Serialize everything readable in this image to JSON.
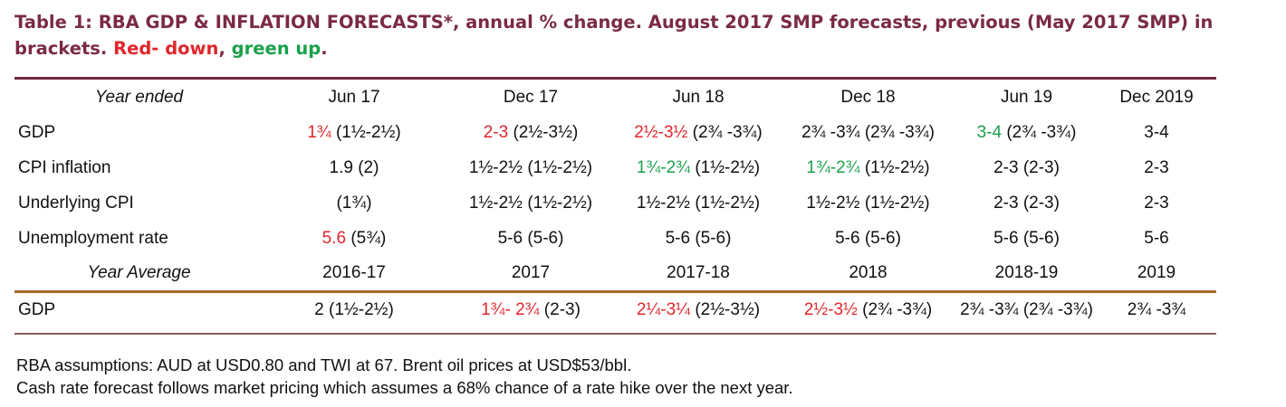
{
  "title": {
    "main": "Table 1: RBA GDP & INFLATION FORECASTS*, annual % change. August 2017 SMP forecasts, previous (May 2017 SMP) in brackets.",
    "red_label": "Red- down",
    "separator": ",",
    "green_label": "green up",
    "end": "."
  },
  "colors": {
    "title": "#7a2a45",
    "down": "#e0262b",
    "up": "#1aa04b",
    "top_rule": "#6e2a3d",
    "mid_rule": "#a86a2b"
  },
  "table": {
    "header": {
      "label": "Year ended",
      "columns": [
        "Jun 17",
        "Dec 17",
        "Jun 18",
        "Dec 18",
        "Jun 19",
        "Dec 2019"
      ]
    },
    "rows": [
      {
        "label": "GDP",
        "cells": [
          {
            "value": "1¾",
            "prev": "(1½-2½)",
            "dir": "down"
          },
          {
            "value": "2-3",
            "prev": "(2½-3½)",
            "dir": "down"
          },
          {
            "value": "2½-3½",
            "prev": "(2¾ -3¾)",
            "dir": "down"
          },
          {
            "value": "2¾ -3¾",
            "prev": "(2¾ -3¾)",
            "dir": "none"
          },
          {
            "value": "3-4",
            "prev": "(2¾ -3¾)",
            "dir": "up"
          },
          {
            "value": "3-4",
            "prev": "",
            "dir": "none"
          }
        ]
      },
      {
        "label": "CPI inflation",
        "cells": [
          {
            "value": "1.9",
            "prev": "(2)",
            "dir": "none"
          },
          {
            "value": "1½-2½",
            "prev": "(1½-2½)",
            "dir": "none"
          },
          {
            "value": "1¾-2¾",
            "prev": "(1½-2½)",
            "dir": "up"
          },
          {
            "value": "1¾-2¾",
            "prev": "(1½-2½)",
            "dir": "up"
          },
          {
            "value": "2-3",
            "prev": "(2-3)",
            "dir": "none"
          },
          {
            "value": "2-3",
            "prev": "",
            "dir": "none"
          }
        ]
      },
      {
        "label": "Underlying CPI",
        "cells": [
          {
            "value": "",
            "prev": "(1¾)",
            "dir": "none"
          },
          {
            "value": "1½-2½",
            "prev": "(1½-2½)",
            "dir": "none"
          },
          {
            "value": "1½-2½",
            "prev": " (1½-2½)",
            "dir": "none"
          },
          {
            "value": "1½-2½",
            "prev": "(1½-2½)",
            "dir": "none"
          },
          {
            "value": "2-3",
            "prev": "(2-3)",
            "dir": "none"
          },
          {
            "value": "2-3",
            "prev": "",
            "dir": "none"
          }
        ]
      },
      {
        "label": "Unemployment rate",
        "cells": [
          {
            "value": "5.6",
            "prev": "(5¾)",
            "dir": "down"
          },
          {
            "value": "5-6",
            "prev": "(5-6)",
            "dir": "none"
          },
          {
            "value": "5-6",
            "prev": "(5-6)",
            "dir": "none"
          },
          {
            "value": "5-6",
            "prev": "(5-6)",
            "dir": "none"
          },
          {
            "value": "5-6",
            "prev": "(5-6)",
            "dir": "none"
          },
          {
            "value": "5-6",
            "prev": "",
            "dir": "none"
          }
        ]
      }
    ],
    "avg_header": {
      "label": "Year Average",
      "columns": [
        "2016-17",
        "2017",
        "2017-18",
        "2018",
        "2018-19",
        "2019"
      ]
    },
    "avg_rows": [
      {
        "label": "GDP",
        "cells": [
          {
            "value": "2",
            "prev": "(1½-2½)",
            "dir": "none"
          },
          {
            "value": "1¾- 2¾",
            "prev": "(2-3)",
            "dir": "down"
          },
          {
            "value": "2¼-3¼",
            "prev": "(2½-3½)",
            "dir": "down"
          },
          {
            "value": "2½-3½",
            "prev": "(2¾ -3¾)",
            "dir": "down"
          },
          {
            "value": "2¾ -3¾",
            "prev": "(2¾ -3¾)",
            "dir": "none"
          },
          {
            "value": "2¾ -3¾",
            "prev": "",
            "dir": "none"
          }
        ]
      }
    ]
  },
  "footer": {
    "line1": "RBA assumptions: AUD at USD0.80 and TWI at 67. Brent oil prices at USD$53/bbl.",
    "line2": "Cash rate forecast follows market pricing which assumes a 68% chance of a rate hike over the next year."
  }
}
